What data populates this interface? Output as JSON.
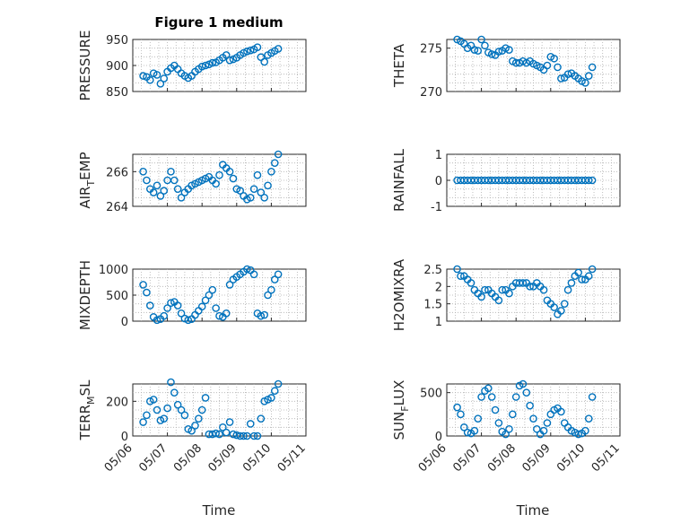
{
  "figure_title": "Figure 1 medium",
  "xaxis_label": "Time",
  "x_ticks": [
    "05/06",
    "05/07",
    "05/08",
    "05/09",
    "05/10",
    "05/11"
  ],
  "marker_color": "#0072BD",
  "chart_data": [
    {
      "type": "scatter",
      "ylabel": "PRESSURE",
      "ylim": [
        850,
        950
      ],
      "yticks": [
        850,
        900,
        950
      ],
      "xlim": [
        0,
        5
      ],
      "x": [
        0.3,
        0.4,
        0.5,
        0.6,
        0.7,
        0.8,
        0.9,
        1.0,
        1.1,
        1.2,
        1.3,
        1.4,
        1.5,
        1.6,
        1.7,
        1.8,
        1.9,
        2.0,
        2.1,
        2.2,
        2.3,
        2.4,
        2.5,
        2.6,
        2.7,
        2.8,
        2.9,
        3.0,
        3.1,
        3.2,
        3.3,
        3.4,
        3.5,
        3.6,
        3.7,
        3.8,
        3.9,
        4.0,
        4.1,
        4.2
      ],
      "y": [
        880,
        878,
        872,
        885,
        882,
        865,
        875,
        888,
        895,
        900,
        893,
        885,
        880,
        876,
        880,
        888,
        893,
        898,
        900,
        902,
        905,
        906,
        910,
        915,
        920,
        910,
        912,
        915,
        920,
        924,
        927,
        929,
        931,
        935,
        916,
        907,
        920,
        924,
        928,
        932
      ]
    },
    {
      "type": "scatter",
      "ylabel": "THETA",
      "ylim": [
        270,
        276
      ],
      "yticks": [
        270,
        275
      ],
      "xlim": [
        0,
        5
      ],
      "x": [
        0.3,
        0.4,
        0.5,
        0.6,
        0.7,
        0.8,
        0.9,
        1.0,
        1.1,
        1.2,
        1.3,
        1.4,
        1.5,
        1.6,
        1.7,
        1.8,
        1.9,
        2.0,
        2.1,
        2.2,
        2.3,
        2.4,
        2.5,
        2.6,
        2.7,
        2.8,
        2.9,
        3.0,
        3.1,
        3.2,
        3.3,
        3.4,
        3.5,
        3.6,
        3.7,
        3.8,
        3.9,
        4.0,
        4.1,
        4.2
      ],
      "y": [
        276,
        275.8,
        275.5,
        275,
        275.3,
        274.8,
        274.7,
        276,
        275.3,
        274.5,
        274.3,
        274.2,
        274.6,
        274.7,
        275,
        274.8,
        273.5,
        273.3,
        273.3,
        273.5,
        273.3,
        273.5,
        273.2,
        273,
        272.8,
        272.5,
        273,
        274,
        273.8,
        272.8,
        271.5,
        271.6,
        272,
        272.1,
        271.8,
        271.5,
        271.2,
        271,
        271.8,
        272.8
      ]
    },
    {
      "type": "scatter",
      "ylabel": "AIRTEMP",
      "ylabel_main": "AIR",
      "ylabel_sub": "T",
      "ylabel_tail": "EMP",
      "ylim": [
        264,
        267
      ],
      "yticks": [
        264,
        266
      ],
      "xlim": [
        0,
        5
      ],
      "x": [
        0.3,
        0.4,
        0.5,
        0.6,
        0.7,
        0.8,
        0.9,
        1.0,
        1.1,
        1.2,
        1.3,
        1.4,
        1.5,
        1.6,
        1.7,
        1.8,
        1.9,
        2.0,
        2.1,
        2.2,
        2.3,
        2.4,
        2.5,
        2.6,
        2.7,
        2.8,
        2.9,
        3.0,
        3.1,
        3.2,
        3.3,
        3.4,
        3.5,
        3.6,
        3.7,
        3.8,
        3.9,
        4.0,
        4.1,
        4.2
      ],
      "y": [
        266,
        265.5,
        265,
        264.8,
        265.2,
        264.6,
        264.9,
        265.5,
        266,
        265.5,
        265,
        264.5,
        264.8,
        265,
        265.2,
        265.3,
        265.4,
        265.5,
        265.6,
        265.7,
        265.5,
        265.3,
        265.8,
        266.4,
        266.2,
        266,
        265.6,
        265,
        264.9,
        264.6,
        264.4,
        264.5,
        265,
        265.8,
        264.8,
        264.5,
        265.2,
        266,
        266.5,
        267
      ]
    },
    {
      "type": "scatter",
      "ylabel": "RAINFALL",
      "ylim": [
        -1,
        1
      ],
      "yticks": [
        -1,
        0,
        1
      ],
      "xlim": [
        0,
        5
      ],
      "x": [
        0.3,
        0.4,
        0.5,
        0.6,
        0.7,
        0.8,
        0.9,
        1.0,
        1.1,
        1.2,
        1.3,
        1.4,
        1.5,
        1.6,
        1.7,
        1.8,
        1.9,
        2.0,
        2.1,
        2.2,
        2.3,
        2.4,
        2.5,
        2.6,
        2.7,
        2.8,
        2.9,
        3.0,
        3.1,
        3.2,
        3.3,
        3.4,
        3.5,
        3.6,
        3.7,
        3.8,
        3.9,
        4.0,
        4.1,
        4.2
      ],
      "y": [
        0,
        0,
        0,
        0,
        0,
        0,
        0,
        0,
        0,
        0,
        0,
        0,
        0,
        0,
        0,
        0,
        0,
        0,
        0,
        0,
        0,
        0,
        0,
        0,
        0,
        0,
        0,
        0,
        0,
        0,
        0,
        0,
        0,
        0,
        0,
        0,
        0,
        0,
        0,
        0
      ]
    },
    {
      "type": "scatter",
      "ylabel": "MIXDEPTH",
      "ylim": [
        0,
        1000
      ],
      "yticks": [
        0,
        500,
        1000
      ],
      "xlim": [
        0,
        5
      ],
      "x": [
        0.3,
        0.4,
        0.5,
        0.6,
        0.7,
        0.8,
        0.9,
        1.0,
        1.1,
        1.2,
        1.3,
        1.4,
        1.5,
        1.6,
        1.7,
        1.8,
        1.9,
        2.0,
        2.1,
        2.2,
        2.3,
        2.4,
        2.5,
        2.6,
        2.7,
        2.8,
        2.9,
        3.0,
        3.1,
        3.2,
        3.3,
        3.4,
        3.5,
        3.6,
        3.7,
        3.8,
        3.9,
        4.0,
        4.1,
        4.2
      ],
      "y": [
        700,
        550,
        300,
        80,
        20,
        40,
        100,
        250,
        350,
        370,
        300,
        150,
        50,
        20,
        40,
        120,
        200,
        280,
        400,
        500,
        600,
        250,
        100,
        80,
        150,
        700,
        800,
        850,
        900,
        950,
        1000,
        980,
        900,
        150,
        100,
        120,
        500,
        600,
        800,
        900
      ]
    },
    {
      "type": "scatter",
      "ylabel": "H2OMIXRA",
      "ylim": [
        1,
        2.5
      ],
      "yticks": [
        1,
        1.5,
        2,
        2.5
      ],
      "xlim": [
        0,
        5
      ],
      "x": [
        0.3,
        0.4,
        0.5,
        0.6,
        0.7,
        0.8,
        0.9,
        1.0,
        1.1,
        1.2,
        1.3,
        1.4,
        1.5,
        1.6,
        1.7,
        1.8,
        1.9,
        2.0,
        2.1,
        2.2,
        2.3,
        2.4,
        2.5,
        2.6,
        2.7,
        2.8,
        2.9,
        3.0,
        3.1,
        3.2,
        3.3,
        3.4,
        3.5,
        3.6,
        3.7,
        3.8,
        3.9,
        4.0,
        4.1,
        4.2
      ],
      "y": [
        2.5,
        2.3,
        2.3,
        2.2,
        2.1,
        1.9,
        1.8,
        1.7,
        1.9,
        1.9,
        1.8,
        1.7,
        1.6,
        1.9,
        1.9,
        1.8,
        2.0,
        2.1,
        2.1,
        2.1,
        2.1,
        2.0,
        2.0,
        2.1,
        2.0,
        1.9,
        1.6,
        1.5,
        1.4,
        1.2,
        1.3,
        1.5,
        1.9,
        2.1,
        2.3,
        2.4,
        2.2,
        2.2,
        2.3,
        2.5
      ]
    },
    {
      "type": "scatter",
      "ylabel": "TERRMSL",
      "ylabel_main": "TERR",
      "ylabel_sub": "M",
      "ylabel_tail": "SL",
      "ylim": [
        0,
        300
      ],
      "yticks": [
        0,
        200
      ],
      "xlim": [
        0,
        5
      ],
      "x": [
        0.3,
        0.4,
        0.5,
        0.6,
        0.7,
        0.8,
        0.9,
        1.0,
        1.1,
        1.2,
        1.3,
        1.4,
        1.5,
        1.6,
        1.7,
        1.8,
        1.9,
        2.0,
        2.1,
        2.2,
        2.3,
        2.4,
        2.5,
        2.6,
        2.7,
        2.8,
        2.9,
        3.0,
        3.1,
        3.2,
        3.3,
        3.4,
        3.5,
        3.6,
        3.7,
        3.8,
        3.9,
        4.0,
        4.1,
        4.2
      ],
      "y": [
        80,
        120,
        200,
        210,
        150,
        90,
        100,
        160,
        310,
        250,
        180,
        150,
        120,
        40,
        30,
        60,
        100,
        150,
        220,
        10,
        10,
        15,
        10,
        50,
        20,
        80,
        10,
        5,
        0,
        0,
        0,
        70,
        0,
        0,
        100,
        200,
        210,
        220,
        260,
        300
      ]
    },
    {
      "type": "scatter",
      "ylabel": "SUNFLUX",
      "ylabel_main": "SUN",
      "ylabel_sub": "F",
      "ylabel_tail": "LUX",
      "ylim": [
        0,
        600
      ],
      "yticks": [
        0,
        500
      ],
      "xlim": [
        0,
        5
      ],
      "x": [
        0.3,
        0.4,
        0.5,
        0.6,
        0.7,
        0.8,
        0.9,
        1.0,
        1.1,
        1.2,
        1.3,
        1.4,
        1.5,
        1.6,
        1.7,
        1.8,
        1.9,
        2.0,
        2.1,
        2.2,
        2.3,
        2.4,
        2.5,
        2.6,
        2.7,
        2.8,
        2.9,
        3.0,
        3.1,
        3.2,
        3.3,
        3.4,
        3.5,
        3.6,
        3.7,
        3.8,
        3.9,
        4.0,
        4.1,
        4.2
      ],
      "y": [
        330,
        250,
        100,
        40,
        30,
        60,
        200,
        450,
        520,
        550,
        450,
        300,
        150,
        50,
        20,
        80,
        250,
        450,
        580,
        600,
        500,
        350,
        200,
        80,
        20,
        60,
        150,
        250,
        300,
        320,
        280,
        150,
        100,
        60,
        40,
        20,
        30,
        60,
        200,
        450
      ]
    }
  ]
}
